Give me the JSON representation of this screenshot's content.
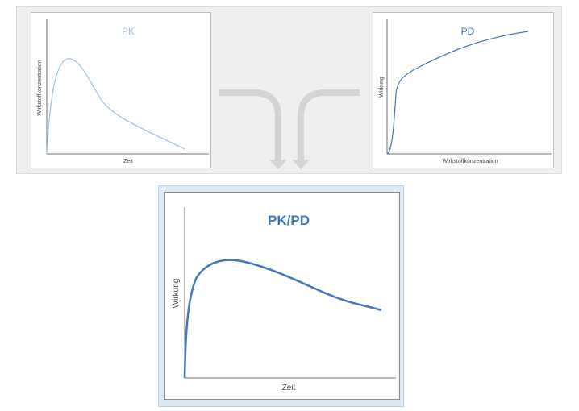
{
  "pk_panel": {
    "title": "PK",
    "xlabel": "Zeit",
    "ylabel": "Wirkstoffkonzentration"
  },
  "pd_panel": {
    "title": "PD",
    "xlabel": "Wirkstoffkonzentration",
    "ylabel": "Wirkung"
  },
  "pkpd_panel": {
    "title": "PK/PD",
    "xlabel": "Zeit",
    "ylabel": "Wirkung"
  },
  "colors": {
    "pk_curve": "#9ec2e4",
    "pd_curve": "#3f78c0",
    "pkpd_curve": "#3f78c0",
    "arrow": "#d4d4d4",
    "top_background": "#efefef",
    "bottom_background": "#dde9f5"
  },
  "icons": {
    "merge_arrows": "merge-arrows-icon"
  }
}
